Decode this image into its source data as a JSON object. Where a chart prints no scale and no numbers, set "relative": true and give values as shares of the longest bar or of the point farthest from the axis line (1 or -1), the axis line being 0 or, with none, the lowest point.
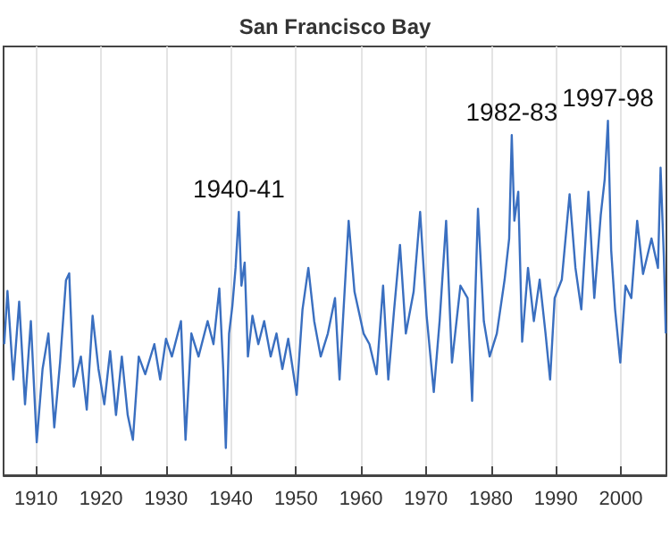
{
  "chart_data": {
    "type": "line",
    "title": "San Francisco Bay",
    "relative": true,
    "grid": true,
    "marker": "none",
    "line_style": "solid",
    "xlim": [
      1905,
      2007
    ],
    "xticks": [
      1910,
      1920,
      1930,
      1940,
      1950,
      1960,
      1970,
      1980,
      1990,
      2000
    ],
    "annotations": [
      {
        "text": "1940-41",
        "x": 1941.2,
        "y": 0.743
      },
      {
        "text": "1982-83",
        "x": 1983.2,
        "y": 0.96
      },
      {
        "text": "1997-98",
        "x": 1998.0,
        "y": 1.0
      }
    ],
    "series": [
      {
        "color": "#3a6fc0",
        "x": [
          1905.1,
          1905.6,
          1906.5,
          1907.4,
          1908.3,
          1909.2,
          1910.1,
          1911.0,
          1911.9,
          1912.8,
          1913.7,
          1914.6,
          1915.1,
          1915.8,
          1916.9,
          1917.8,
          1918.7,
          1919.6,
          1920.5,
          1921.4,
          1922.3,
          1923.2,
          1924.1,
          1924.9,
          1925.8,
          1926.8,
          1928.2,
          1929.1,
          1930.0,
          1930.9,
          1932.3,
          1933.0,
          1933.9,
          1935.0,
          1936.4,
          1937.3,
          1938.2,
          1938.8,
          1939.2,
          1939.7,
          1940.2,
          1940.7,
          1941.2,
          1941.6,
          1942.1,
          1942.6,
          1943.3,
          1944.2,
          1945.1,
          1946.1,
          1947.0,
          1947.9,
          1948.8,
          1950.1,
          1951.0,
          1951.9,
          1952.8,
          1953.8,
          1954.9,
          1956.0,
          1956.7,
          1958.1,
          1959.0,
          1960.4,
          1961.3,
          1962.4,
          1963.4,
          1964.2,
          1965.1,
          1966.0,
          1966.9,
          1968.1,
          1969.1,
          1970.1,
          1971.2,
          1972.1,
          1973.1,
          1974.0,
          1975.3,
          1976.4,
          1977.1,
          1978.0,
          1978.9,
          1979.8,
          1980.9,
          1982.1,
          1982.8,
          1983.2,
          1983.6,
          1984.2,
          1984.8,
          1985.7,
          1986.6,
          1987.5,
          1988.4,
          1989.1,
          1989.8,
          1990.9,
          1992.1,
          1993.0,
          1993.9,
          1995.0,
          1995.9,
          1996.9,
          1997.5,
          1998.0,
          1998.5,
          1999.1,
          1999.9,
          2000.7,
          2001.6,
          2002.5,
          2003.4,
          2004.7,
          2005.7,
          2006.1,
          2006.6,
          2006.9
        ],
        "values": [
          0.37,
          0.52,
          0.27,
          0.49,
          0.2,
          0.435,
          0.093,
          0.3,
          0.4,
          0.135,
          0.32,
          0.55,
          0.57,
          0.25,
          0.335,
          0.185,
          0.45,
          0.3,
          0.2,
          0.35,
          0.17,
          0.335,
          0.17,
          0.1,
          0.335,
          0.285,
          0.37,
          0.27,
          0.385,
          0.335,
          0.435,
          0.1,
          0.4,
          0.335,
          0.435,
          0.37,
          0.527,
          0.3,
          0.077,
          0.4,
          0.477,
          0.585,
          0.743,
          0.535,
          0.6,
          0.335,
          0.45,
          0.37,
          0.435,
          0.335,
          0.4,
          0.3,
          0.385,
          0.227,
          0.468,
          0.585,
          0.435,
          0.335,
          0.4,
          0.5,
          0.27,
          0.718,
          0.518,
          0.4,
          0.37,
          0.285,
          0.535,
          0.27,
          0.468,
          0.65,
          0.4,
          0.518,
          0.743,
          0.45,
          0.235,
          0.435,
          0.718,
          0.318,
          0.535,
          0.5,
          0.21,
          0.752,
          0.435,
          0.335,
          0.4,
          0.552,
          0.668,
          0.96,
          0.718,
          0.8,
          0.377,
          0.585,
          0.435,
          0.552,
          0.4,
          0.27,
          0.5,
          0.552,
          0.793,
          0.585,
          0.468,
          0.8,
          0.5,
          0.735,
          0.835,
          1.0,
          0.635,
          0.468,
          0.318,
          0.535,
          0.5,
          0.718,
          0.568,
          0.668,
          0.585,
          0.868,
          0.618,
          0.4
        ]
      }
    ]
  }
}
